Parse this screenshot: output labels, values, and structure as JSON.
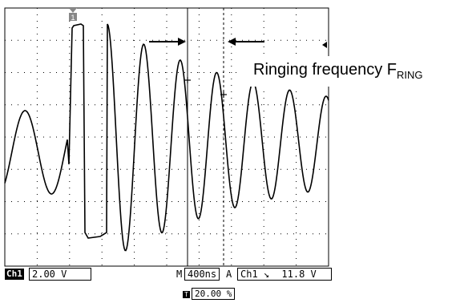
{
  "caption": {
    "main": "Ringing frequency F",
    "subscript": "RING"
  },
  "status": {
    "channel_tag": "Ch1",
    "volts_per_div": "2.00 V",
    "m_label": "M",
    "timebase": "400ns",
    "a_label": "A",
    "trigger_channel": "Ch1",
    "trigger_edge_icon": "rising-edge-icon",
    "trigger_level": "11.8 V"
  },
  "trigger_position": {
    "marker_icon": "trigger-t-icon",
    "value": "20.00 %"
  },
  "markers": {
    "trigger_one_label": "1"
  },
  "colors": {
    "trace": "#000000",
    "grid": "#000000",
    "background": "#ffffff"
  }
}
